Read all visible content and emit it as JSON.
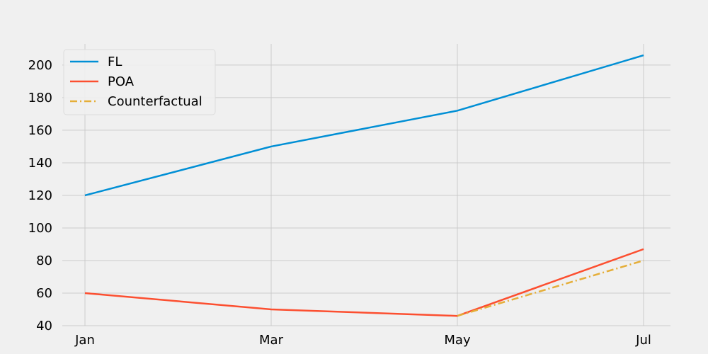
{
  "chart_data": {
    "type": "line",
    "title": "",
    "xlabel": "",
    "ylabel": "",
    "categories": [
      "Jan",
      "Mar",
      "May",
      "Jul"
    ],
    "ylim": [
      40,
      213
    ],
    "y_ticks": [
      40,
      60,
      80,
      100,
      120,
      140,
      160,
      180,
      200
    ],
    "grid": true,
    "legend_position": "top-left",
    "series": [
      {
        "name": "FL",
        "color": "#008fd5",
        "style": "solid",
        "x": [
          "Jan",
          "Mar",
          "May",
          "Jul"
        ],
        "values": [
          120,
          150,
          172,
          206
        ]
      },
      {
        "name": "POA",
        "color": "#fc4f30",
        "style": "solid",
        "x": [
          "Jan",
          "Mar",
          "May",
          "Jul"
        ],
        "values": [
          60,
          50,
          46,
          87
        ]
      },
      {
        "name": "Counterfactual",
        "color": "#e5ae38",
        "style": "dashdot",
        "x": [
          "May",
          "Jul"
        ],
        "values": [
          46,
          80
        ]
      }
    ]
  }
}
